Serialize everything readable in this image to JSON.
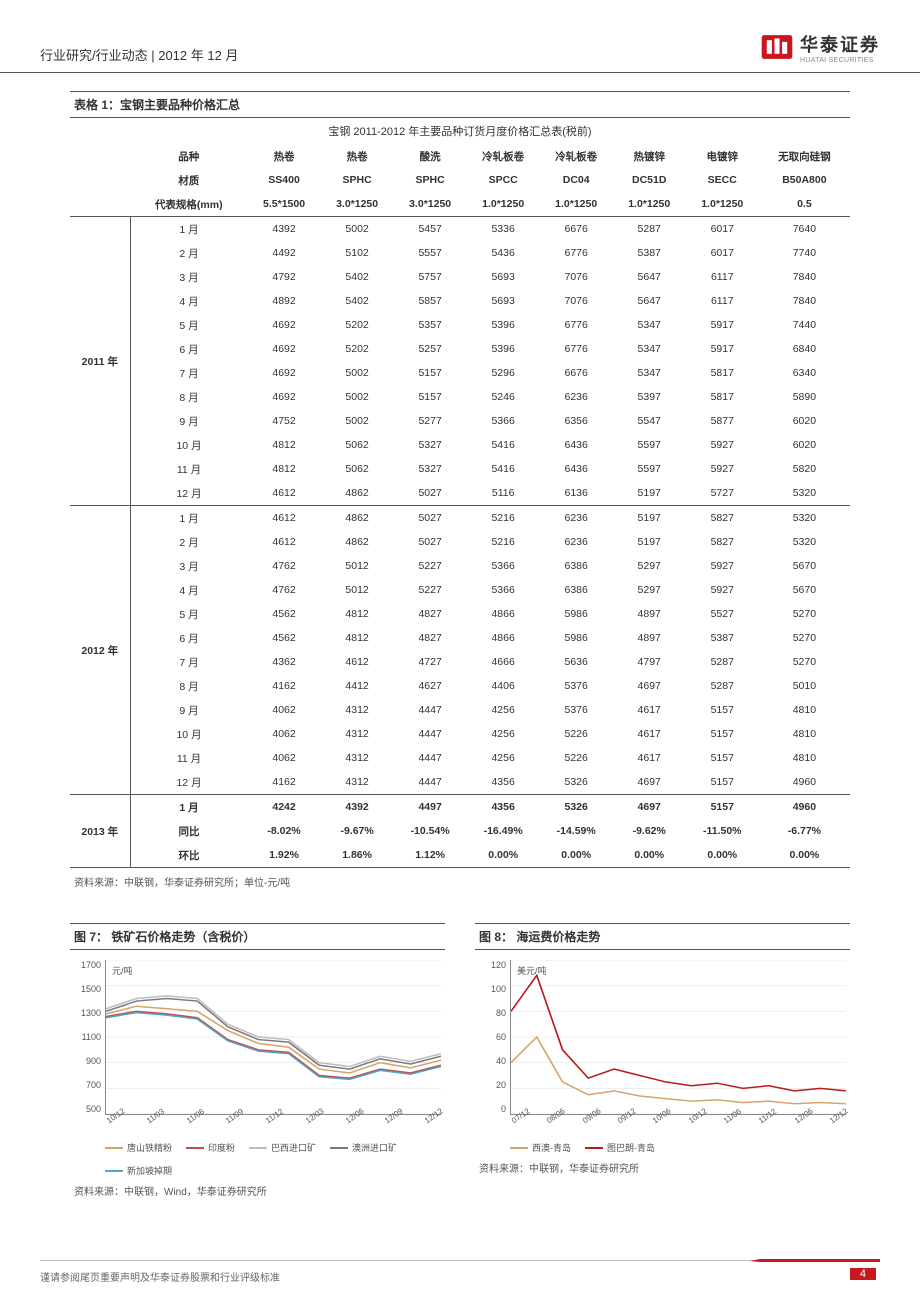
{
  "header": {
    "breadcrumb": "行业研究/行业动态 | 2012 年 12 月"
  },
  "logo": {
    "cn": "华泰证券",
    "en": "HUATAI SECURITIES",
    "red": "#c8171e"
  },
  "table": {
    "title": "表格 1：宝钢主要品种价格汇总",
    "subtitle": "宝钢 2011-2012 年主要品种订货月度价格汇总表(税前)",
    "row_labels": [
      "品种",
      "材质",
      "代表规格(mm)"
    ],
    "columns": [
      {
        "product": "热卷",
        "material": "SS400",
        "spec": "5.5*1500"
      },
      {
        "product": "热卷",
        "material": "SPHC",
        "spec": "3.0*1250"
      },
      {
        "product": "酸洗",
        "material": "SPHC",
        "spec": "3.0*1250"
      },
      {
        "product": "冷轧板卷",
        "material": "SPCC",
        "spec": "1.0*1250"
      },
      {
        "product": "冷轧板卷",
        "material": "DC04",
        "spec": "1.0*1250"
      },
      {
        "product": "热镀锌",
        "material": "DC51D",
        "spec": "1.0*1250"
      },
      {
        "product": "电镀锌",
        "material": "SECC",
        "spec": "1.0*1250"
      },
      {
        "product": "无取向硅钢",
        "material": "B50A800",
        "spec": "0.5"
      }
    ],
    "groups": [
      {
        "label": "2011 年",
        "rows": [
          {
            "m": "1 月",
            "v": [
              4392,
              5002,
              5457,
              5336,
              6676,
              5287,
              6017,
              7640
            ]
          },
          {
            "m": "2 月",
            "v": [
              4492,
              5102,
              5557,
              5436,
              6776,
              5387,
              6017,
              7740
            ]
          },
          {
            "m": "3 月",
            "v": [
              4792,
              5402,
              5757,
              5693,
              7076,
              5647,
              6117,
              7840
            ]
          },
          {
            "m": "4 月",
            "v": [
              4892,
              5402,
              5857,
              5693,
              7076,
              5647,
              6117,
              7840
            ]
          },
          {
            "m": "5 月",
            "v": [
              4692,
              5202,
              5357,
              5396,
              6776,
              5347,
              5917,
              7440
            ]
          },
          {
            "m": "6 月",
            "v": [
              4692,
              5202,
              5257,
              5396,
              6776,
              5347,
              5917,
              6840
            ]
          },
          {
            "m": "7 月",
            "v": [
              4692,
              5002,
              5157,
              5296,
              6676,
              5347,
              5817,
              6340
            ]
          },
          {
            "m": "8 月",
            "v": [
              4692,
              5002,
              5157,
              5246,
              6236,
              5397,
              5817,
              5890
            ]
          },
          {
            "m": "9 月",
            "v": [
              4752,
              5002,
              5277,
              5366,
              6356,
              5547,
              5877,
              6020
            ]
          },
          {
            "m": "10 月",
            "v": [
              4812,
              5062,
              5327,
              5416,
              6436,
              5597,
              5927,
              6020
            ]
          },
          {
            "m": "11 月",
            "v": [
              4812,
              5062,
              5327,
              5416,
              6436,
              5597,
              5927,
              5820
            ]
          },
          {
            "m": "12 月",
            "v": [
              4612,
              4862,
              5027,
              5116,
              6136,
              5197,
              5727,
              5320
            ]
          }
        ]
      },
      {
        "label": "2012 年",
        "rows": [
          {
            "m": "1 月",
            "v": [
              4612,
              4862,
              5027,
              5216,
              6236,
              5197,
              5827,
              5320
            ]
          },
          {
            "m": "2 月",
            "v": [
              4612,
              4862,
              5027,
              5216,
              6236,
              5197,
              5827,
              5320
            ]
          },
          {
            "m": "3 月",
            "v": [
              4762,
              5012,
              5227,
              5366,
              6386,
              5297,
              5927,
              5670
            ]
          },
          {
            "m": "4 月",
            "v": [
              4762,
              5012,
              5227,
              5366,
              6386,
              5297,
              5927,
              5670
            ]
          },
          {
            "m": "5 月",
            "v": [
              4562,
              4812,
              4827,
              4866,
              5986,
              4897,
              5527,
              5270
            ]
          },
          {
            "m": "6 月",
            "v": [
              4562,
              4812,
              4827,
              4866,
              5986,
              4897,
              5387,
              5270
            ]
          },
          {
            "m": "7 月",
            "v": [
              4362,
              4612,
              4727,
              4666,
              5636,
              4797,
              5287,
              5270
            ]
          },
          {
            "m": "8 月",
            "v": [
              4162,
              4412,
              4627,
              4406,
              5376,
              4697,
              5287,
              5010
            ]
          },
          {
            "m": "9 月",
            "v": [
              4062,
              4312,
              4447,
              4256,
              5376,
              4617,
              5157,
              4810
            ]
          },
          {
            "m": "10 月",
            "v": [
              4062,
              4312,
              4447,
              4256,
              5226,
              4617,
              5157,
              4810
            ]
          },
          {
            "m": "11 月",
            "v": [
              4062,
              4312,
              4447,
              4256,
              5226,
              4617,
              5157,
              4810
            ]
          },
          {
            "m": "12 月",
            "v": [
              4162,
              4312,
              4447,
              4356,
              5326,
              4697,
              5157,
              4960
            ]
          }
        ]
      },
      {
        "label": "2013 年",
        "rows": [
          {
            "m": "1 月",
            "v": [
              4242,
              4392,
              4497,
              4356,
              5326,
              4697,
              5157,
              4960
            ],
            "bold": true
          },
          {
            "m": "同比",
            "v": [
              "-8.02%",
              "-9.67%",
              "-10.54%",
              "-16.49%",
              "-14.59%",
              "-9.62%",
              "-11.50%",
              "-6.77%"
            ],
            "bold": true
          },
          {
            "m": "环比",
            "v": [
              "1.92%",
              "1.86%",
              "1.12%",
              "0.00%",
              "0.00%",
              "0.00%",
              "0.00%",
              "0.00%"
            ],
            "bold": true
          }
        ]
      }
    ],
    "source": "资料来源：中联钢，华泰证券研究所；单位-元/吨"
  },
  "chart7": {
    "title": "图 7：     铁矿石价格走势（含税价）",
    "y_unit": "元/吨",
    "ymin": 500,
    "ymax": 1700,
    "ystep": 200,
    "x_labels": [
      "10/12",
      "11/03",
      "11/06",
      "11/09",
      "11/12",
      "12/03",
      "12/06",
      "12/09",
      "12/12"
    ],
    "series": [
      {
        "name": "唐山铁精粉",
        "color": "#d4a56a",
        "data": [
          1280,
          1340,
          1320,
          1300,
          1150,
          1050,
          1020,
          850,
          820,
          900,
          860,
          920
        ]
      },
      {
        "name": "印度粉",
        "color": "#c94a4a",
        "data": [
          1260,
          1300,
          1280,
          1250,
          1080,
          1000,
          980,
          800,
          780,
          850,
          820,
          880
        ]
      },
      {
        "name": "巴西进口矿",
        "color": "#bdbdbd",
        "data": [
          1320,
          1400,
          1420,
          1400,
          1200,
          1100,
          1080,
          900,
          870,
          950,
          910,
          970
        ]
      },
      {
        "name": "澳洲进口矿",
        "color": "#7a7a7a",
        "data": [
          1300,
          1380,
          1400,
          1380,
          1180,
          1080,
          1060,
          880,
          850,
          930,
          890,
          950
        ]
      },
      {
        "name": "新加坡掉期",
        "color": "#4aa8c9",
        "data": [
          1250,
          1290,
          1270,
          1240,
          1070,
          990,
          970,
          790,
          770,
          840,
          810,
          870
        ]
      }
    ],
    "source": "资料来源：中联钢，Wind，华泰证券研究所"
  },
  "chart8": {
    "title": "图 8：     海运费价格走势",
    "y_unit": "美元/吨",
    "ymin": 0,
    "ymax": 120,
    "ystep": 20,
    "x_labels": [
      "07/12",
      "08/06",
      "09/06",
      "09/12",
      "10/06",
      "10/12",
      "11/06",
      "11/12",
      "12/06",
      "12/12"
    ],
    "series": [
      {
        "name": "西澳-青岛",
        "color": "#d4a56a",
        "data": [
          40,
          60,
          25,
          15,
          18,
          14,
          12,
          10,
          11,
          9,
          10,
          8,
          9,
          8
        ]
      },
      {
        "name": "图巴朗-青岛",
        "color": "#b71c1c",
        "data": [
          80,
          108,
          50,
          28,
          35,
          30,
          25,
          22,
          24,
          20,
          22,
          18,
          20,
          18
        ]
      }
    ],
    "source": "资料来源：中联钢，华泰证券研究所"
  },
  "footer": {
    "disclaimer": "谨请参阅尾页重要声明及华泰证券股票和行业评级标准",
    "page": "4"
  },
  "colors": {
    "border": "#555555",
    "accent": "#c8171e"
  }
}
